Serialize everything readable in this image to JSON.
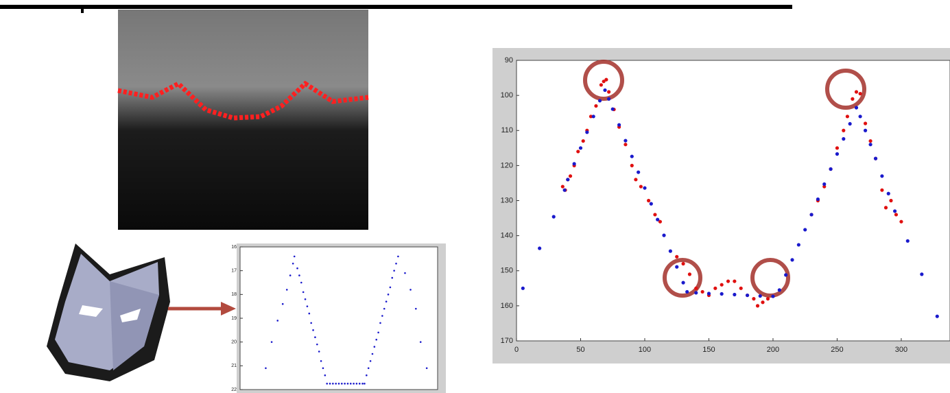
{
  "chart_data": [
    {
      "type": "scatter",
      "xlim": [
        0,
        100
      ],
      "ylim": [
        16,
        22
      ],
      "y_inverted": true,
      "yticks": [
        16,
        17,
        18,
        19,
        20,
        21,
        22
      ],
      "series": [
        {
          "color": "#1a1acc",
          "x": [
            13,
            16,
            19,
            21.6,
            23.7,
            25.4,
            26.8,
            27.5,
            29,
            30,
            31,
            32,
            33,
            34,
            35,
            36,
            37,
            38,
            39,
            40,
            41,
            42,
            43,
            44,
            45.5,
            47,
            48.5,
            50,
            51.5,
            53,
            54.5,
            56,
            57.5,
            59,
            60.5,
            62,
            63,
            64,
            65,
            66,
            67,
            68,
            69,
            70,
            71,
            72,
            73,
            74,
            75,
            76,
            77,
            78,
            79,
            80,
            83.5,
            86.3,
            89,
            91.4,
            94.5
          ],
          "values": [
            21.1,
            20.0,
            19.1,
            18.4,
            17.8,
            17.2,
            16.7,
            16.4,
            16.9,
            17.2,
            17.5,
            17.9,
            18.2,
            18.5,
            18.8,
            19.2,
            19.5,
            19.8,
            20.1,
            20.4,
            20.8,
            21.1,
            21.4,
            21.75,
            21.75,
            21.75,
            21.75,
            21.75,
            21.75,
            21.75,
            21.75,
            21.75,
            21.75,
            21.75,
            21.75,
            21.75,
            21.75,
            21.4,
            21.1,
            20.8,
            20.5,
            20.2,
            19.9,
            19.6,
            19.2,
            18.9,
            18.6,
            18.3,
            18.0,
            17.7,
            17.3,
            17.0,
            16.7,
            16.4,
            17.1,
            17.8,
            18.6,
            20.0,
            21.1
          ]
        }
      ]
    },
    {
      "type": "scatter",
      "xlim": [
        0,
        338
      ],
      "ylim": [
        90,
        170
      ],
      "y_inverted": true,
      "xticks": [
        0,
        50,
        100,
        150,
        200,
        250,
        300
      ],
      "yticks": [
        90,
        100,
        110,
        120,
        130,
        140,
        150,
        160,
        170
      ],
      "series": [
        {
          "color": "#e01010",
          "x": [
            36,
            38,
            40,
            42,
            45,
            48,
            52,
            55,
            58,
            62,
            66,
            68,
            70,
            72,
            76,
            80,
            85,
            90,
            93,
            97,
            103,
            108,
            112,
            125,
            130,
            135,
            140,
            145,
            150,
            155,
            160,
            165,
            170,
            175,
            180,
            185,
            188,
            192,
            196,
            230,
            235,
            240,
            245,
            250,
            255,
            258,
            262,
            265,
            268,
            272,
            276,
            280,
            285,
            288,
            292,
            296,
            300
          ],
          "values": [
            126,
            127,
            124,
            123,
            120,
            116,
            113,
            110,
            106,
            103,
            97,
            96,
            95.5,
            99,
            104,
            109,
            114,
            120,
            124,
            126,
            130,
            134,
            136,
            146,
            148,
            151,
            155,
            156,
            157,
            155,
            154,
            153,
            153,
            155,
            157,
            158,
            160,
            159,
            158,
            134,
            130,
            126,
            121,
            115,
            110,
            106,
            101,
            99,
            99.5,
            108,
            113,
            118,
            127,
            132,
            130,
            134,
            136
          ]
        },
        {
          "color": "#1a1acc",
          "x": [
            5,
            18,
            29,
            37.5,
            40,
            45,
            50,
            55,
            60,
            65,
            69,
            72,
            75,
            80,
            85,
            90,
            95,
            100,
            105,
            110,
            115,
            120,
            125,
            130,
            133,
            140,
            150,
            160,
            170,
            180,
            190,
            200,
            205,
            210,
            215,
            220,
            225,
            230,
            235,
            240,
            245,
            250,
            255,
            260,
            265,
            268,
            272,
            276,
            280,
            285,
            290,
            295,
            305,
            316,
            328
          ],
          "values": [
            155,
            143.6,
            134.6,
            127,
            124,
            119.5,
            115,
            110.5,
            106,
            101.5,
            98.5,
            101,
            103.9,
            108.4,
            112.9,
            117.4,
            121.9,
            126.4,
            130.9,
            135.4,
            139.9,
            144.4,
            148.9,
            153.4,
            156,
            156.3,
            156.5,
            156.6,
            156.8,
            157,
            157.2,
            157.3,
            155.5,
            151.2,
            146.9,
            142.6,
            138.3,
            134,
            129.6,
            125.3,
            121,
            116.7,
            112.4,
            108.1,
            103.5,
            106,
            110,
            114,
            118,
            123,
            128,
            133,
            141.5,
            151,
            163
          ]
        }
      ]
    }
  ]
}
